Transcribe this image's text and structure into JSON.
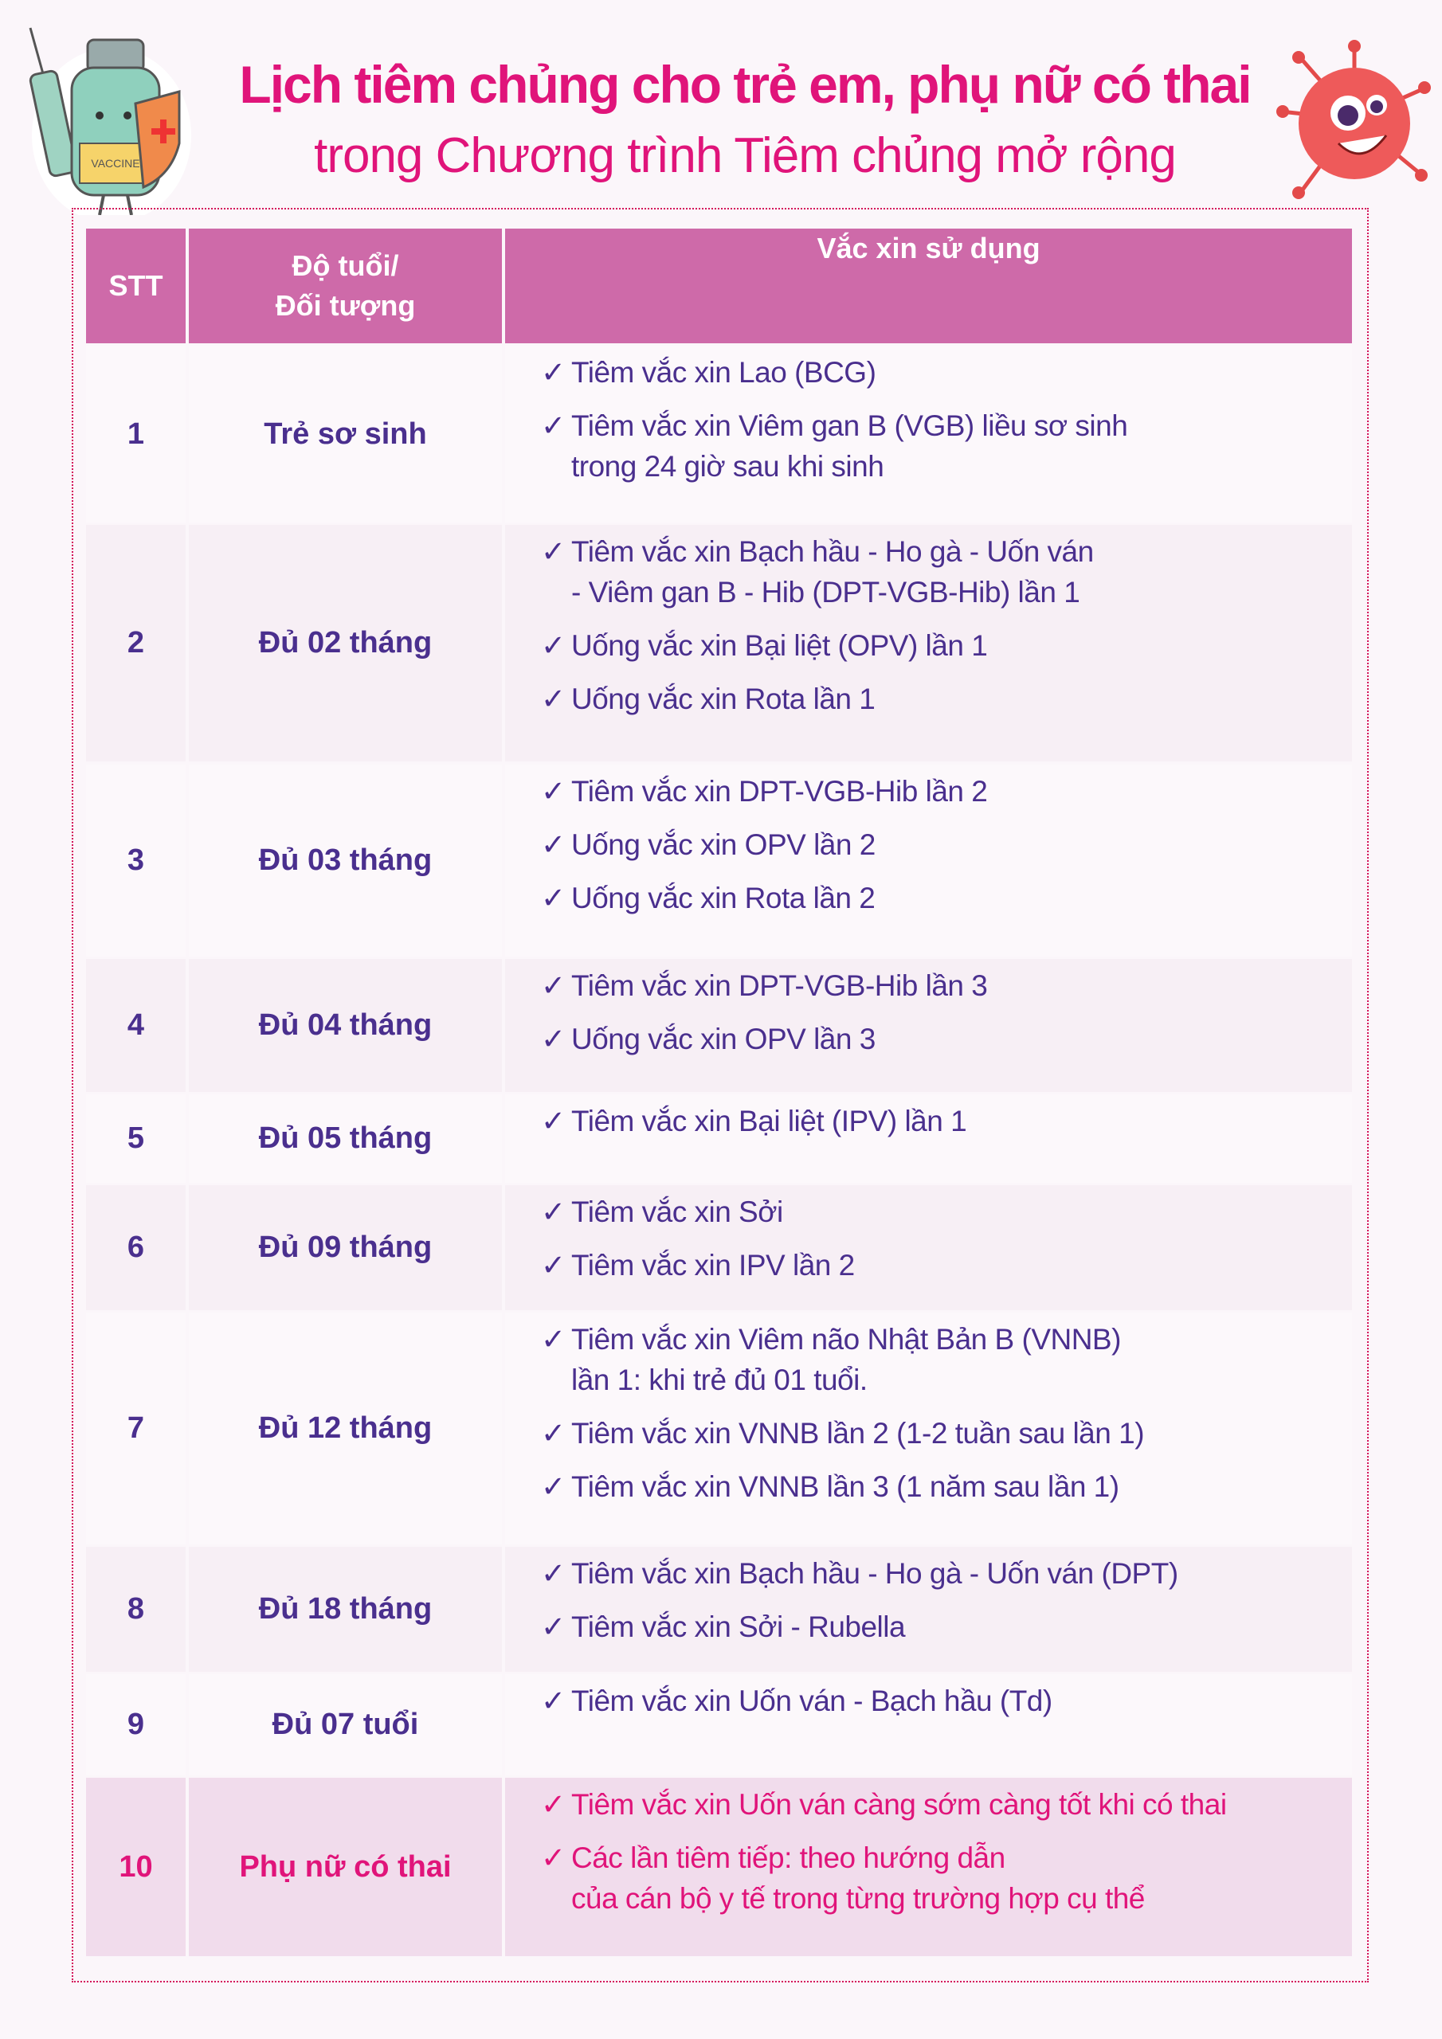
{
  "header": {
    "title": "Lịch tiêm chủng cho trẻ em, phụ nữ có thai",
    "subtitle": "trong Chương trình Tiêm chủng mở rộng",
    "vaccine_label": "VACCINE"
  },
  "table": {
    "columns": [
      "STT",
      "Độ tuổi/",
      "Đối tượng",
      "Vắc xin sử dụng"
    ],
    "rows": [
      {
        "stt": "1",
        "age": "Trẻ sơ sinh",
        "items": [
          [
            "Tiêm vắc xin Lao (BCG)"
          ],
          [
            "Tiêm vắc xin Viêm gan B (VGB) liều sơ sinh",
            "trong 24 giờ sau khi sinh"
          ]
        ]
      },
      {
        "stt": "2",
        "age": "Đủ 02 tháng",
        "items": [
          [
            "Tiêm vắc xin Bạch hầu - Ho gà - Uốn ván",
            "- Viêm gan B - Hib (DPT-VGB-Hib) lần 1"
          ],
          [
            "Uống vắc xin Bại liệt  (OPV) lần 1"
          ],
          [
            "Uống vắc xin Rota lần 1"
          ]
        ]
      },
      {
        "stt": "3",
        "age": "Đủ 03 tháng",
        "items": [
          [
            "Tiêm vắc xin DPT-VGB-Hib lần 2"
          ],
          [
            "Uống vắc xin OPV lần 2"
          ],
          [
            "Uống vắc xin Rota lần 2"
          ]
        ]
      },
      {
        "stt": "4",
        "age": "Đủ 04 tháng",
        "items": [
          [
            "Tiêm vắc xin DPT-VGB-Hib lần 3"
          ],
          [
            "Uống vắc xin OPV lần 3"
          ]
        ]
      },
      {
        "stt": "5",
        "age": "Đủ 05 tháng",
        "items": [
          [
            "Tiêm vắc xin Bại liệt (IPV) lần 1"
          ]
        ]
      },
      {
        "stt": "6",
        "age": "Đủ 09 tháng",
        "items": [
          [
            "Tiêm vắc xin Sởi"
          ],
          [
            "Tiêm vắc xin IPV lần 2"
          ]
        ]
      },
      {
        "stt": "7",
        "age": "Đủ 12 tháng",
        "items": [
          [
            "Tiêm vắc xin Viêm não Nhật Bản B (VNNB)",
            "lần 1: khi trẻ đủ 01 tuổi."
          ],
          [
            "Tiêm vắc xin VNNB lần 2 (1-2 tuần sau lần 1)"
          ],
          [
            "Tiêm vắc xin VNNB lần 3 (1 năm sau lần 1)"
          ]
        ]
      },
      {
        "stt": "8",
        "age": "Đủ 18 tháng",
        "items": [
          [
            "Tiêm vắc xin Bạch hầu - Ho gà - Uốn ván (DPT)"
          ],
          [
            "Tiêm vắc xin Sởi - Rubella"
          ]
        ]
      },
      {
        "stt": "9",
        "age": "Đủ 07 tuổi",
        "items": [
          [
            "Tiêm vắc xin Uốn ván - Bạch hầu (Td)"
          ]
        ]
      },
      {
        "stt": "10",
        "age": "Phụ nữ có thai",
        "items": [
          [
            "Tiêm vắc xin Uốn ván càng sớm càng tốt khi có thai"
          ],
          [
            "Các lần tiêm tiếp: theo hướng dẫn",
            "của cán bộ y tế trong từng trường hợp cụ thể"
          ]
        ]
      }
    ]
  },
  "colors": {
    "accent": "#e0147a",
    "header_bg": "#ce6aa9",
    "text": "#4a2f8e",
    "highlight_row": "#f1dcec"
  },
  "icons": {
    "check": "✓",
    "left": "vaccine-bottle-icon",
    "right": "virus-icon"
  }
}
